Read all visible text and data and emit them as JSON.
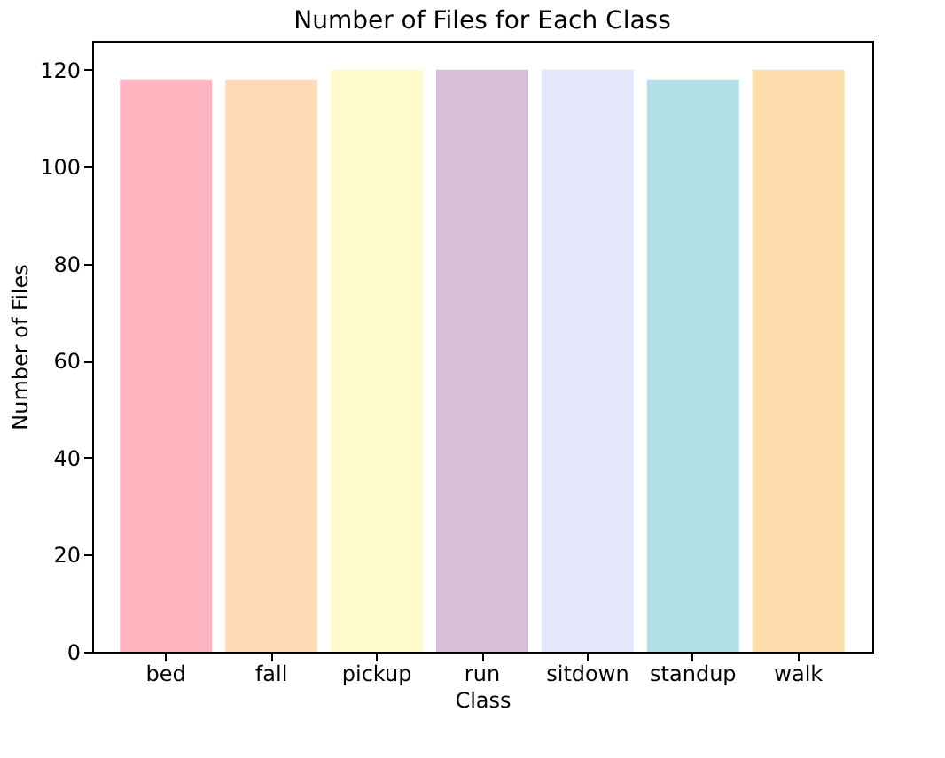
{
  "chart_data": {
    "type": "bar",
    "title": "Number of Files for Each Class",
    "xlabel": "Class",
    "ylabel": "Number of Files",
    "categories": [
      "bed",
      "fall",
      "pickup",
      "run",
      "sitdown",
      "standup",
      "walk"
    ],
    "values": [
      118,
      118,
      120,
      120,
      120,
      118,
      120
    ],
    "colors": [
      "#ffb6c1",
      "#ffdab9",
      "#fffacd",
      "#d8bfd8",
      "#e6e6fa",
      "#b0e0e6",
      "#ffdead"
    ],
    "ylim": [
      0,
      126
    ],
    "yticks": [
      0,
      20,
      40,
      60,
      80,
      100,
      120
    ],
    "grid": false
  }
}
